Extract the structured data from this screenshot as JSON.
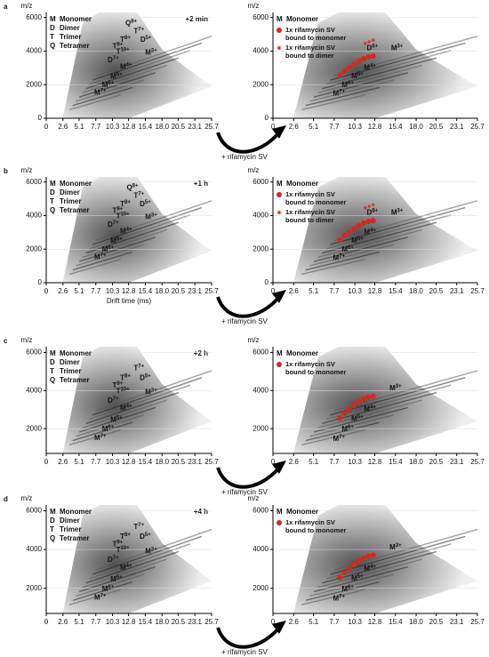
{
  "panels": [
    {
      "label": "a",
      "time": "+2 min",
      "treatment": "+ rifamycin SV"
    },
    {
      "label": "b",
      "time": "+1 h",
      "treatment": "+ rifamycin SV"
    },
    {
      "label": "c",
      "time": "+2 h",
      "treatment": "+ rifamycin SV"
    },
    {
      "label": "d",
      "time": "+4 h",
      "treatment": "+ rifamycin SV"
    }
  ],
  "chart_data": [
    {
      "type": "scatter",
      "y_label": "m/z",
      "xlim": [
        0,
        25.7
      ],
      "xticks": [
        0,
        2.6,
        5.1,
        7.7,
        10.3,
        12.8,
        15.4,
        {
          "value": 18,
          "label": "18.0"
        },
        20.5,
        23.1,
        25.7
      ],
      "ylim": [
        0,
        6300
      ],
      "yticks": [
        0,
        2000,
        4000,
        6000
      ],
      "legend": [
        {
          "key": "M",
          "name": "Monomer",
          "color": "#1b9dd9"
        },
        {
          "key": "D",
          "name": "Dimer",
          "color": "#d4348f"
        },
        {
          "key": "T",
          "name": "Trimer",
          "color": "#35256f"
        },
        {
          "key": "Q",
          "name": "Tetramer",
          "color": "#e5892b"
        }
      ],
      "annotations": [
        {
          "species": "Q",
          "charge": "8+",
          "x": 13.2,
          "y": 5650
        },
        {
          "species": "T",
          "charge": "7+",
          "x": 14.4,
          "y": 5150
        },
        {
          "species": "D",
          "charge": "5+",
          "x": 15.5,
          "y": 4650
        },
        {
          "species": "T",
          "charge": "8+",
          "x": 12.3,
          "y": 4650
        },
        {
          "species": "T",
          "charge": "9+",
          "x": 11.1,
          "y": 4250
        },
        {
          "species": "T",
          "charge": "10+",
          "x": 11.9,
          "y": 3950
        },
        {
          "species": "M",
          "charge": "3+",
          "x": 16.3,
          "y": 3900
        },
        {
          "species": "D",
          "charge": "7+",
          "x": 10.4,
          "y": 3450
        },
        {
          "species": "M",
          "charge": "4+",
          "x": 12.4,
          "y": 3050
        },
        {
          "species": "M",
          "charge": "5+",
          "x": 10.9,
          "y": 2450
        },
        {
          "species": "M",
          "charge": "6+",
          "x": 9.6,
          "y": 1950
        },
        {
          "species": "M",
          "charge": "7+",
          "x": 8.4,
          "y": 1500
        }
      ],
      "series": []
    },
    {
      "type": "scatter",
      "y_label": "m/z",
      "xlim": [
        0,
        25.7
      ],
      "xticks": [
        0,
        2.6,
        5.1,
        7.7,
        10.3,
        12.8,
        15.4,
        {
          "value": 18,
          "label": "18.0"
        },
        20.5,
        23.1,
        25.7
      ],
      "ylim": [
        0,
        6300
      ],
      "yticks": [
        0,
        2000,
        4000,
        6000
      ],
      "legend": [
        {
          "key": "M",
          "name": "Monomer",
          "color": "#1b9dd9"
        }
      ],
      "annotations": [
        {
          "species": "M",
          "charge": "3+",
          "x": 15.6,
          "y": 4150
        },
        {
          "species": "D",
          "charge": "6+",
          "x": 12.5,
          "y": 4150
        },
        {
          "species": "M",
          "charge": "4+",
          "x": 12.2,
          "y": 3000
        },
        {
          "species": "M",
          "charge": "5+",
          "x": 10.6,
          "y": 2500
        },
        {
          "species": "M",
          "charge": "6+",
          "x": 9.4,
          "y": 1950
        },
        {
          "species": "M",
          "charge": "7+",
          "x": 8.3,
          "y": 1450
        }
      ],
      "series": [
        {
          "name": "1x rifamycin SV bound to monomer",
          "color": "#d7261e",
          "marker": "circle",
          "x": [
            8.4,
            9.0,
            9.6,
            10.2,
            10.8,
            11.4,
            12.0,
            12.6
          ],
          "values": [
            2550,
            2800,
            3000,
            3200,
            3400,
            3550,
            3650,
            3700
          ]
        },
        {
          "name": "1x rifamycin SV bound to dimer",
          "color": "#d7261e",
          "marker": "star",
          "x": [
            11.6,
            12.1,
            12.6
          ],
          "values": [
            4450,
            4550,
            4650
          ]
        }
      ]
    },
    {
      "type": "scatter",
      "y_label": "m/z",
      "x_label": "Drift time (ms)",
      "xlim": [
        0,
        25.7
      ],
      "xticks": [
        0,
        2.6,
        5.1,
        7.7,
        10.3,
        12.8,
        15.4,
        {
          "value": 18,
          "label": "18.0"
        },
        20.5,
        23.1,
        25.7
      ],
      "ylim": [
        0,
        6300
      ],
      "yticks": [
        0,
        2000,
        4000,
        6000
      ],
      "legend": [
        {
          "key": "M",
          "name": "Monomer",
          "color": "#1b9dd9"
        },
        {
          "key": "D",
          "name": "Dimer",
          "color": "#d4348f"
        },
        {
          "key": "T",
          "name": "Trimer",
          "color": "#35256f"
        },
        {
          "key": "Q",
          "name": "Tetramer",
          "color": "#e5892b"
        }
      ],
      "annotations": [
        {
          "species": "Q",
          "charge": "8+",
          "x": 13.4,
          "y": 5650
        },
        {
          "species": "T",
          "charge": "7+",
          "x": 14.4,
          "y": 5150
        },
        {
          "species": "D",
          "charge": "5+",
          "x": 15.4,
          "y": 4650
        },
        {
          "species": "T",
          "charge": "8+",
          "x": 12.3,
          "y": 4650
        },
        {
          "species": "T",
          "charge": "9+",
          "x": 11.1,
          "y": 4250
        },
        {
          "species": "T",
          "charge": "10+",
          "x": 11.9,
          "y": 3950
        },
        {
          "species": "M",
          "charge": "3+",
          "x": 16.3,
          "y": 3900
        },
        {
          "species": "D",
          "charge": "7+",
          "x": 10.4,
          "y": 3450
        },
        {
          "species": "M",
          "charge": "4+",
          "x": 12.4,
          "y": 3050
        },
        {
          "species": "M",
          "charge": "5+",
          "x": 10.9,
          "y": 2450
        },
        {
          "species": "M",
          "charge": "6+",
          "x": 9.6,
          "y": 1950
        },
        {
          "species": "M",
          "charge": "7+",
          "x": 8.4,
          "y": 1500
        }
      ],
      "series": []
    },
    {
      "type": "scatter",
      "y_label": "m/z",
      "xlim": [
        0,
        25.7
      ],
      "xticks": [
        0,
        2.6,
        5.1,
        7.7,
        10.3,
        12.8,
        15.4,
        {
          "value": 18,
          "label": "18.0"
        },
        20.5,
        23.1,
        25.7
      ],
      "ylim": [
        0,
        6300
      ],
      "yticks": [
        0,
        2000,
        4000,
        6000
      ],
      "legend": [
        {
          "key": "M",
          "name": "Monomer",
          "color": "#1b9dd9"
        }
      ],
      "annotations": [
        {
          "species": "M",
          "charge": "3+",
          "x": 15.6,
          "y": 4150
        },
        {
          "species": "D",
          "charge": "6+",
          "x": 12.5,
          "y": 4150
        },
        {
          "species": "M",
          "charge": "4+",
          "x": 12.2,
          "y": 3000
        },
        {
          "species": "M",
          "charge": "5+",
          "x": 10.6,
          "y": 2500
        },
        {
          "species": "M",
          "charge": "6+",
          "x": 9.4,
          "y": 1950
        },
        {
          "species": "M",
          "charge": "7+",
          "x": 8.3,
          "y": 1450
        }
      ],
      "series": [
        {
          "name": "1x rifamycin SV bound to monomer",
          "color": "#d7261e",
          "marker": "circle",
          "x": [
            8.4,
            9.0,
            9.6,
            10.2,
            10.8,
            11.4,
            12.0,
            12.6
          ],
          "values": [
            2550,
            2800,
            3000,
            3200,
            3400,
            3550,
            3650,
            3700
          ]
        },
        {
          "name": "1x rifamycin SV bound to dimer",
          "color": "#d7261e",
          "marker": "star",
          "x": [
            11.6,
            12.1,
            12.6
          ],
          "values": [
            4450,
            4550,
            4650
          ]
        }
      ]
    },
    {
      "type": "scatter",
      "y_label": "m/z",
      "xlim": [
        0,
        25.7
      ],
      "xticks": [
        0,
        2.6,
        5.1,
        7.7,
        10.3,
        12.8,
        15.4,
        {
          "value": 18,
          "label": "18.0"
        },
        20.5,
        23.1,
        25.7
      ],
      "ylim": [
        700,
        6300
      ],
      "yticks": [
        2000,
        4000,
        6000
      ],
      "legend": [
        {
          "key": "M",
          "name": "Monomer",
          "color": "#1b9dd9"
        },
        {
          "key": "D",
          "name": "Dimer",
          "color": "#d4348f"
        },
        {
          "key": "T",
          "name": "Trimer",
          "color": "#35256f"
        },
        {
          "key": "Q",
          "name": "Tetramer",
          "color": "#e5892b"
        }
      ],
      "annotations": [
        {
          "species": "T",
          "charge": "7+",
          "x": 14.4,
          "y": 5150
        },
        {
          "species": "D",
          "charge": "5+",
          "x": 15.4,
          "y": 4650
        },
        {
          "species": "T",
          "charge": "8+",
          "x": 12.3,
          "y": 4650
        },
        {
          "species": "T",
          "charge": "9+",
          "x": 11.1,
          "y": 4250
        },
        {
          "species": "T",
          "charge": "10+",
          "x": 11.9,
          "y": 3950
        },
        {
          "species": "M",
          "charge": "3+",
          "x": 16.3,
          "y": 3900
        },
        {
          "species": "D",
          "charge": "7+",
          "x": 10.4,
          "y": 3450
        },
        {
          "species": "M",
          "charge": "4+",
          "x": 12.4,
          "y": 3050
        },
        {
          "species": "M",
          "charge": "5+",
          "x": 10.9,
          "y": 2450
        },
        {
          "species": "M",
          "charge": "6+",
          "x": 9.6,
          "y": 1950
        },
        {
          "species": "M",
          "charge": "7+",
          "x": 8.4,
          "y": 1500
        }
      ],
      "series": []
    },
    {
      "type": "scatter",
      "y_label": "m/z",
      "xlim": [
        0,
        25.7
      ],
      "xticks": [
        0,
        2.6,
        5.1,
        7.7,
        10.3,
        12.8,
        15.4,
        {
          "value": 18,
          "label": "18.0"
        },
        20.5,
        23.1,
        25.7
      ],
      "ylim": [
        700,
        6300
      ],
      "yticks": [
        2000,
        4000,
        6000
      ],
      "legend": [
        {
          "key": "M",
          "name": "Monomer",
          "color": "#1b9dd9"
        }
      ],
      "annotations": [
        {
          "species": "M",
          "charge": "3+",
          "x": 15.4,
          "y": 4100
        },
        {
          "species": "M",
          "charge": "4+",
          "x": 12.2,
          "y": 3000
        },
        {
          "species": "M",
          "charge": "5+",
          "x": 10.6,
          "y": 2500
        },
        {
          "species": "M",
          "charge": "6+",
          "x": 9.4,
          "y": 1950
        },
        {
          "species": "M",
          "charge": "7+",
          "x": 8.3,
          "y": 1450
        }
      ],
      "series": [
        {
          "name": "1x rifamycin SV bound to monomer",
          "color": "#d7261e",
          "marker": "circle",
          "x": [
            8.4,
            9.0,
            9.6,
            10.2,
            10.8,
            11.4,
            12.0,
            12.6
          ],
          "values": [
            2550,
            2800,
            3000,
            3200,
            3400,
            3550,
            3650,
            3700
          ]
        }
      ]
    },
    {
      "type": "scatter",
      "y_label": "m/z",
      "xlim": [
        0,
        25.7
      ],
      "xticks": [
        0,
        2.6,
        5.1,
        7.7,
        10.3,
        12.8,
        15.4,
        {
          "value": 18,
          "label": "18.0"
        },
        20.5,
        23.1,
        25.7
      ],
      "ylim": [
        700,
        6300
      ],
      "yticks": [
        2000,
        4000,
        6000
      ],
      "legend": [
        {
          "key": "M",
          "name": "Monomer",
          "color": "#1b9dd9"
        },
        {
          "key": "D",
          "name": "Dimer",
          "color": "#d4348f"
        },
        {
          "key": "T",
          "name": "Trimer",
          "color": "#35256f"
        },
        {
          "key": "Q",
          "name": "Tetramer",
          "color": "#e5892b"
        }
      ],
      "annotations": [
        {
          "species": "T",
          "charge": "7+",
          "x": 14.4,
          "y": 5150
        },
        {
          "species": "D",
          "charge": "5+",
          "x": 15.4,
          "y": 4650
        },
        {
          "species": "T",
          "charge": "8+",
          "x": 12.3,
          "y": 4650
        },
        {
          "species": "T",
          "charge": "9+",
          "x": 11.1,
          "y": 4250
        },
        {
          "species": "T",
          "charge": "10+",
          "x": 11.9,
          "y": 3950
        },
        {
          "species": "M",
          "charge": "3+",
          "x": 16.3,
          "y": 3900
        },
        {
          "species": "D",
          "charge": "7+",
          "x": 10.4,
          "y": 3450
        },
        {
          "species": "M",
          "charge": "4+",
          "x": 12.4,
          "y": 3050
        },
        {
          "species": "M",
          "charge": "5+",
          "x": 10.9,
          "y": 2450
        },
        {
          "species": "M",
          "charge": "6+",
          "x": 9.6,
          "y": 1950
        },
        {
          "species": "M",
          "charge": "7+",
          "x": 8.4,
          "y": 1500
        }
      ],
      "series": []
    },
    {
      "type": "scatter",
      "y_label": "m/z",
      "xlim": [
        0,
        25.7
      ],
      "xticks": [
        0,
        2.6,
        5.1,
        7.7,
        10.3,
        12.8,
        15.4,
        {
          "value": 18,
          "label": "18.0"
        },
        20.5,
        23.1,
        25.7
      ],
      "ylim": [
        700,
        6300
      ],
      "yticks": [
        2000,
        4000,
        6000
      ],
      "legend": [
        {
          "key": "M",
          "name": "Monomer",
          "color": "#1b9dd9"
        }
      ],
      "annotations": [
        {
          "species": "M",
          "charge": "3+",
          "x": 15.4,
          "y": 4100
        },
        {
          "species": "M",
          "charge": "4+",
          "x": 12.2,
          "y": 3000
        },
        {
          "species": "M",
          "charge": "5+",
          "x": 10.6,
          "y": 2500
        },
        {
          "species": "M",
          "charge": "6+",
          "x": 9.4,
          "y": 1950
        },
        {
          "species": "M",
          "charge": "7+",
          "x": 8.3,
          "y": 1450
        }
      ],
      "series": [
        {
          "name": "1x rifamycin SV bound to monomer",
          "color": "#d7261e",
          "marker": "circle",
          "x": [
            8.4,
            9.0,
            9.6,
            10.2,
            10.8,
            11.4,
            12.0,
            12.6
          ],
          "values": [
            2550,
            2800,
            3000,
            3200,
            3400,
            3550,
            3650,
            3700
          ]
        }
      ]
    }
  ]
}
